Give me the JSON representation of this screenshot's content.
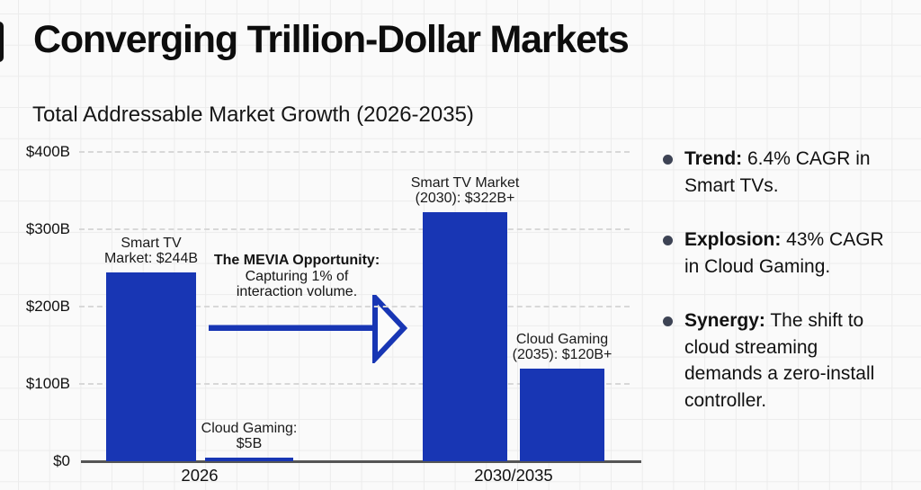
{
  "title": "Converging Trillion-Dollar Markets",
  "chart_title": "Total Addressable Market Growth (2026-2035)",
  "colors": {
    "bar": "#1836b4",
    "arrow": "#1836b4",
    "arrow_head_fill": "#fbfbfb",
    "bullet_dot": "#3d4354",
    "background": "#fafafa"
  },
  "chart_data": {
    "type": "bar",
    "title": "Total Addressable Market Growth (2026-2035)",
    "ylim": [
      0,
      400
    ],
    "grid": true,
    "yticks": [
      {
        "label": "$0",
        "value": 0
      },
      {
        "label": "$100B",
        "value": 100
      },
      {
        "label": "$200B",
        "value": 200
      },
      {
        "label": "$300B",
        "value": 300
      },
      {
        "label": "$400B",
        "value": 400
      }
    ],
    "groups": [
      {
        "x_label": "2026",
        "bars": [
          {
            "name": "Smart TV Market 2026",
            "label_lines": [
              "Smart TV",
              "Market: $244B"
            ],
            "value": 244
          },
          {
            "name": "Cloud Gaming 2026",
            "label_lines": [
              "Cloud Gaming:",
              "$5B"
            ],
            "value": 5
          }
        ]
      },
      {
        "x_label": "2030/2035",
        "bars": [
          {
            "name": "Smart TV Market 2030",
            "label_lines": [
              "Smart TV Market",
              "(2030): $322B+"
            ],
            "value": 322
          },
          {
            "name": "Cloud Gaming 2035",
            "label_lines": [
              "Cloud Gaming",
              "(2035): $120B+"
            ],
            "value": 120
          }
        ]
      }
    ],
    "annotation": {
      "bold": "The MEVIA Opportunity:",
      "lines": [
        "Capturing 1% of",
        "interaction volume."
      ]
    }
  },
  "key_points": [
    {
      "lead": "Trend:",
      "lines": [
        " 6.4% CAGR in",
        "Smart TVs."
      ]
    },
    {
      "lead": "Explosion:",
      "lines": [
        " 43% CAGR",
        "in Cloud Gaming."
      ]
    },
    {
      "lead": "Synergy:",
      "lines": [
        " The shift to",
        "cloud streaming",
        "demands a zero-install",
        "controller."
      ]
    }
  ]
}
